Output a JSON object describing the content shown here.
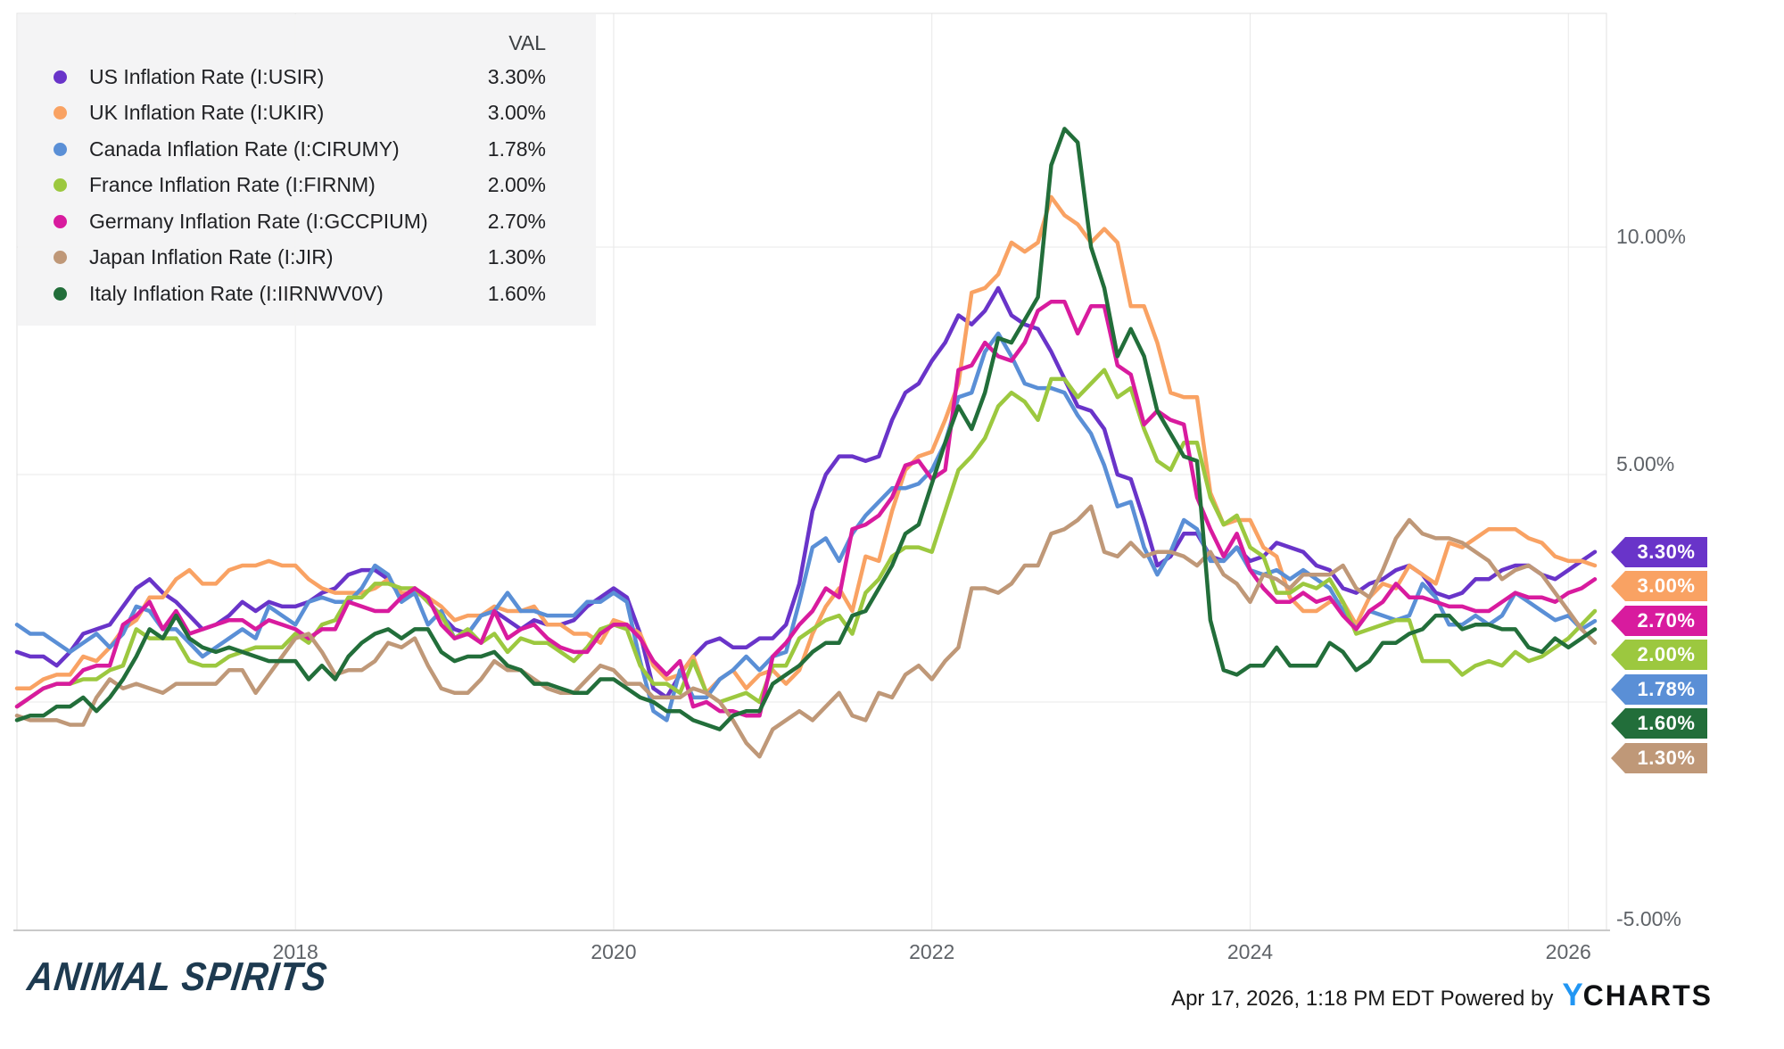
{
  "legend": {
    "val_header": "VAL",
    "items": [
      {
        "label": "US Inflation Rate (I:USIR)",
        "value": "3.30%",
        "color": "#6934c9"
      },
      {
        "label": "UK Inflation Rate (I:UKIR)",
        "value": "3.00%",
        "color": "#f9a263"
      },
      {
        "label": "Canada Inflation Rate (I:CIRUMY)",
        "value": "1.78%",
        "color": "#5a8fd6"
      },
      {
        "label": "France Inflation Rate (I:FIRNM)",
        "value": "2.00%",
        "color": "#9cc83f"
      },
      {
        "label": "Germany Inflation Rate (I:GCCPIUM)",
        "value": "2.70%",
        "color": "#d81b9e"
      },
      {
        "label": "Japan Inflation Rate (I:JIR)",
        "value": "1.30%",
        "color": "#bf9878"
      },
      {
        "label": "Italy Inflation Rate (I:IIRNWV0V)",
        "value": "1.60%",
        "color": "#226e3a"
      }
    ]
  },
  "chart_data": {
    "type": "line",
    "frequency": "monthly",
    "x_start": "2016-04",
    "x_end": "2026-03",
    "x_axis": {
      "tick_years": [
        2018,
        2020,
        2022,
        2024,
        2026
      ],
      "tick_labels": [
        "2018",
        "2020",
        "2022",
        "2024",
        "2026"
      ]
    },
    "y_axis": {
      "unit": "%",
      "range": [
        -5.1,
        15.1
      ],
      "gridline_values": [
        10,
        5,
        0
      ],
      "tick_values": [
        10,
        5,
        -5
      ],
      "tick_labels": [
        "10.00%",
        "5.00%",
        "-5.00%"
      ]
    },
    "legend_position": "top-left",
    "series": [
      {
        "name": "US Inflation Rate",
        "ticker": "I:USIR",
        "color": "#6934c9",
        "end_label": "3.30%",
        "values": [
          1.1,
          1.0,
          1.0,
          0.8,
          1.1,
          1.5,
          1.6,
          1.7,
          2.1,
          2.5,
          2.7,
          2.4,
          2.2,
          1.9,
          1.6,
          1.7,
          1.9,
          2.2,
          2.0,
          2.2,
          2.1,
          2.1,
          2.2,
          2.4,
          2.5,
          2.8,
          2.9,
          2.9,
          2.7,
          2.3,
          2.5,
          2.2,
          1.9,
          1.6,
          1.5,
          1.9,
          2.0,
          1.8,
          1.6,
          1.8,
          1.7,
          1.7,
          1.8,
          2.1,
          2.3,
          2.5,
          2.3,
          1.5,
          0.3,
          0.1,
          0.6,
          1.0,
          1.3,
          1.4,
          1.2,
          1.2,
          1.4,
          1.4,
          1.7,
          2.6,
          4.2,
          5.0,
          5.4,
          5.4,
          5.3,
          5.4,
          6.2,
          6.8,
          7.0,
          7.5,
          7.9,
          8.5,
          8.3,
          8.6,
          9.1,
          8.5,
          8.3,
          8.2,
          7.7,
          7.1,
          6.5,
          6.4,
          6.0,
          5.0,
          4.9,
          4.0,
          3.0,
          3.2,
          3.7,
          3.7,
          3.2,
          3.1,
          3.4,
          3.1,
          3.2,
          3.5,
          3.4,
          3.3,
          3.0,
          2.9,
          2.5,
          2.4,
          2.6,
          2.7,
          2.9,
          3.0,
          2.8,
          2.4,
          2.3,
          2.4,
          2.7,
          2.7,
          2.9,
          3.0,
          3.0,
          2.8,
          2.7,
          2.9,
          3.1,
          3.3
        ]
      },
      {
        "name": "UK Inflation Rate",
        "ticker": "I:UKIR",
        "color": "#f9a263",
        "end_label": "3.00%",
        "values": [
          0.3,
          0.3,
          0.5,
          0.6,
          0.6,
          1.0,
          0.9,
          1.2,
          1.6,
          1.8,
          2.3,
          2.3,
          2.7,
          2.9,
          2.6,
          2.6,
          2.9,
          3.0,
          3.0,
          3.1,
          3.0,
          3.0,
          2.7,
          2.5,
          2.4,
          2.4,
          2.4,
          2.5,
          2.7,
          2.4,
          2.4,
          2.3,
          2.1,
          1.8,
          1.9,
          1.9,
          2.1,
          2.0,
          2.0,
          2.1,
          1.7,
          1.7,
          1.5,
          1.5,
          1.3,
          1.8,
          1.7,
          1.5,
          0.8,
          0.5,
          0.6,
          1.0,
          0.2,
          0.5,
          0.7,
          0.3,
          0.6,
          0.7,
          0.4,
          0.7,
          1.5,
          2.1,
          2.5,
          2.0,
          3.2,
          3.1,
          4.2,
          5.1,
          5.4,
          5.5,
          6.2,
          7.0,
          9.0,
          9.1,
          9.4,
          10.1,
          9.9,
          10.1,
          11.1,
          10.7,
          10.5,
          10.1,
          10.4,
          10.1,
          8.7,
          8.7,
          7.9,
          6.8,
          6.7,
          6.7,
          4.6,
          3.9,
          4.0,
          4.0,
          3.4,
          3.2,
          2.3,
          2.0,
          2.0,
          2.2,
          2.2,
          1.7,
          2.3,
          2.6,
          2.5,
          3.0,
          2.8,
          2.6,
          3.5,
          3.4,
          3.6,
          3.8,
          3.8,
          3.8,
          3.6,
          3.5,
          3.2,
          3.1,
          3.1,
          3.0
        ]
      },
      {
        "name": "Canada Inflation Rate",
        "ticker": "I:CIRUMY",
        "color": "#5a8fd6",
        "end_label": "1.78%",
        "values": [
          1.7,
          1.5,
          1.5,
          1.3,
          1.1,
          1.3,
          1.5,
          1.2,
          1.5,
          2.1,
          2.0,
          1.6,
          1.6,
          1.3,
          1.0,
          1.2,
          1.4,
          1.6,
          1.4,
          2.1,
          1.9,
          1.7,
          2.2,
          2.3,
          2.2,
          2.2,
          2.5,
          3.0,
          2.8,
          2.2,
          2.4,
          1.7,
          2.0,
          1.4,
          1.5,
          1.9,
          2.0,
          2.4,
          2.0,
          2.0,
          1.9,
          1.9,
          1.9,
          2.2,
          2.2,
          2.4,
          2.2,
          0.9,
          -0.2,
          -0.4,
          0.7,
          0.1,
          0.1,
          0.5,
          0.7,
          1.0,
          0.7,
          1.0,
          1.1,
          2.2,
          3.4,
          3.6,
          3.1,
          3.7,
          4.1,
          4.4,
          4.7,
          4.7,
          4.8,
          5.1,
          5.7,
          6.7,
          6.8,
          7.7,
          8.1,
          7.6,
          7.0,
          6.9,
          6.9,
          6.8,
          6.3,
          5.9,
          5.2,
          4.3,
          4.4,
          3.4,
          2.8,
          3.3,
          4.0,
          3.8,
          3.1,
          3.1,
          3.4,
          2.9,
          2.8,
          2.9,
          2.7,
          2.9,
          2.7,
          2.5,
          2.0,
          1.6,
          2.0,
          1.9,
          1.8,
          1.9,
          2.6,
          2.3,
          1.7,
          1.7,
          1.9,
          1.7,
          1.9,
          2.4,
          2.2,
          2.0,
          1.8,
          1.9,
          1.6,
          1.78
        ]
      },
      {
        "name": "France Inflation Rate",
        "ticker": "I:FIRNM",
        "color": "#9cc83f",
        "end_label": "2.00%",
        "values": [
          -0.1,
          0.1,
          0.3,
          0.4,
          0.4,
          0.5,
          0.5,
          0.7,
          0.8,
          1.6,
          1.4,
          1.4,
          1.4,
          0.9,
          0.8,
          0.8,
          1.0,
          1.1,
          1.2,
          1.2,
          1.2,
          1.5,
          1.3,
          1.7,
          1.8,
          2.3,
          2.3,
          2.6,
          2.6,
          2.5,
          2.5,
          2.2,
          1.9,
          1.4,
          1.6,
          1.3,
          1.5,
          1.1,
          1.4,
          1.3,
          1.3,
          1.1,
          0.9,
          1.2,
          1.6,
          1.7,
          1.6,
          0.8,
          0.4,
          0.4,
          0.2,
          0.9,
          0.2,
          0.0,
          0.1,
          0.2,
          0.0,
          0.8,
          0.8,
          1.4,
          1.6,
          1.8,
          1.9,
          1.5,
          2.4,
          2.7,
          3.2,
          3.4,
          3.4,
          3.3,
          4.2,
          5.1,
          5.4,
          5.8,
          6.5,
          6.8,
          6.6,
          6.2,
          7.1,
          7.1,
          6.7,
          7.0,
          7.3,
          6.7,
          6.9,
          6.0,
          5.3,
          5.1,
          5.7,
          5.7,
          4.5,
          3.9,
          4.1,
          3.4,
          3.2,
          2.4,
          2.4,
          2.6,
          2.5,
          2.7,
          2.2,
          1.5,
          1.6,
          1.7,
          1.8,
          1.8,
          0.9,
          0.9,
          0.9,
          0.6,
          0.8,
          0.9,
          0.8,
          1.1,
          0.9,
          1.0,
          1.2,
          1.4,
          1.7,
          2.0
        ]
      },
      {
        "name": "Germany Inflation Rate",
        "ticker": "I:GCCPIUM",
        "color": "#d81b9e",
        "end_label": "2.70%",
        "values": [
          -0.1,
          0.1,
          0.3,
          0.4,
          0.4,
          0.7,
          0.8,
          0.8,
          1.7,
          1.9,
          2.2,
          1.6,
          2.0,
          1.5,
          1.6,
          1.7,
          1.8,
          1.8,
          1.6,
          1.8,
          1.7,
          1.6,
          1.4,
          1.6,
          1.6,
          2.2,
          2.1,
          2.0,
          2.0,
          2.3,
          2.5,
          2.3,
          1.7,
          1.4,
          1.5,
          1.3,
          2.0,
          1.4,
          1.6,
          1.7,
          1.4,
          1.2,
          1.1,
          1.1,
          1.5,
          1.7,
          1.7,
          1.4,
          0.9,
          0.6,
          0.9,
          -0.1,
          0.0,
          -0.2,
          -0.2,
          -0.3,
          -0.3,
          1.0,
          1.3,
          1.7,
          2.0,
          2.5,
          2.3,
          3.8,
          3.9,
          4.1,
          4.5,
          5.2,
          5.3,
          4.9,
          5.1,
          7.3,
          7.4,
          7.9,
          7.6,
          7.5,
          7.9,
          8.6,
          8.8,
          8.8,
          8.1,
          8.7,
          8.7,
          7.4,
          7.2,
          6.1,
          6.4,
          6.2,
          6.1,
          4.5,
          3.8,
          3.2,
          3.7,
          2.9,
          2.5,
          2.2,
          2.2,
          2.4,
          2.2,
          2.3,
          1.9,
          1.6,
          2.0,
          2.2,
          2.6,
          2.3,
          2.3,
          2.2,
          2.1,
          2.1,
          2.0,
          2.0,
          2.2,
          2.4,
          2.3,
          2.3,
          2.2,
          2.4,
          2.5,
          2.7
        ]
      },
      {
        "name": "Japan Inflation Rate",
        "ticker": "I:JIR",
        "color": "#bf9878",
        "end_label": "1.30%",
        "values": [
          -0.3,
          -0.4,
          -0.4,
          -0.4,
          -0.5,
          -0.5,
          0.1,
          0.5,
          0.3,
          0.4,
          0.3,
          0.2,
          0.4,
          0.4,
          0.4,
          0.4,
          0.7,
          0.7,
          0.2,
          0.6,
          1.0,
          1.4,
          1.5,
          1.1,
          0.6,
          0.7,
          0.7,
          0.9,
          1.3,
          1.2,
          1.4,
          0.8,
          0.3,
          0.2,
          0.2,
          0.5,
          0.9,
          0.7,
          0.7,
          0.5,
          0.3,
          0.2,
          0.2,
          0.5,
          0.8,
          0.7,
          0.4,
          0.4,
          0.1,
          0.1,
          0.1,
          0.3,
          0.2,
          0.0,
          -0.4,
          -0.9,
          -1.2,
          -0.6,
          -0.4,
          -0.2,
          -0.4,
          -0.1,
          0.2,
          -0.3,
          -0.4,
          0.2,
          0.1,
          0.6,
          0.8,
          0.5,
          0.9,
          1.2,
          2.5,
          2.5,
          2.4,
          2.6,
          3.0,
          3.0,
          3.7,
          3.8,
          4.0,
          4.3,
          3.3,
          3.2,
          3.5,
          3.2,
          3.3,
          3.3,
          3.2,
          3.0,
          3.3,
          2.8,
          2.6,
          2.2,
          2.8,
          2.7,
          2.5,
          2.8,
          2.8,
          2.8,
          3.0,
          2.5,
          2.3,
          2.9,
          3.6,
          4.0,
          3.7,
          3.6,
          3.6,
          3.5,
          3.3,
          3.1,
          2.7,
          2.9,
          3.0,
          2.8,
          2.4,
          2.0,
          1.6,
          1.3
        ]
      },
      {
        "name": "Italy Inflation Rate",
        "ticker": "I:IIRNWV0V",
        "color": "#226e3a",
        "end_label": "1.60%",
        "values": [
          -0.4,
          -0.3,
          -0.3,
          -0.1,
          -0.1,
          0.1,
          -0.2,
          0.1,
          0.5,
          1.0,
          1.6,
          1.4,
          1.9,
          1.4,
          1.2,
          1.1,
          1.2,
          1.1,
          1.0,
          0.9,
          0.9,
          0.9,
          0.5,
          0.8,
          0.5,
          1.0,
          1.3,
          1.5,
          1.6,
          1.4,
          1.6,
          1.6,
          1.1,
          0.9,
          1.0,
          1.0,
          1.1,
          0.8,
          0.7,
          0.4,
          0.4,
          0.3,
          0.2,
          0.2,
          0.5,
          0.5,
          0.3,
          0.1,
          0.0,
          -0.2,
          -0.2,
          -0.4,
          -0.5,
          -0.6,
          -0.3,
          -0.2,
          -0.2,
          0.4,
          0.6,
          0.8,
          1.1,
          1.3,
          1.3,
          1.9,
          2.0,
          2.5,
          3.0,
          3.7,
          3.9,
          4.8,
          5.7,
          6.5,
          6.0,
          6.8,
          8.0,
          7.9,
          8.4,
          8.9,
          11.8,
          12.6,
          12.3,
          10.0,
          9.1,
          7.6,
          8.2,
          7.6,
          6.4,
          5.9,
          5.4,
          5.3,
          1.8,
          0.7,
          0.6,
          0.8,
          0.8,
          1.2,
          0.8,
          0.8,
          0.8,
          1.3,
          1.1,
          0.7,
          0.9,
          1.3,
          1.3,
          1.5,
          1.6,
          1.9,
          1.9,
          1.6,
          1.7,
          1.7,
          1.6,
          1.6,
          1.2,
          1.1,
          1.4,
          1.2,
          1.4,
          1.6
        ]
      }
    ]
  },
  "footer": {
    "brand": "ANIMAL SPIRITS",
    "timestamp": "Apr 17, 2026, 1:18 PM EDT",
    "powered_by": " Powered by",
    "logo_y": "Y",
    "logo_charts": "CHARTS"
  }
}
